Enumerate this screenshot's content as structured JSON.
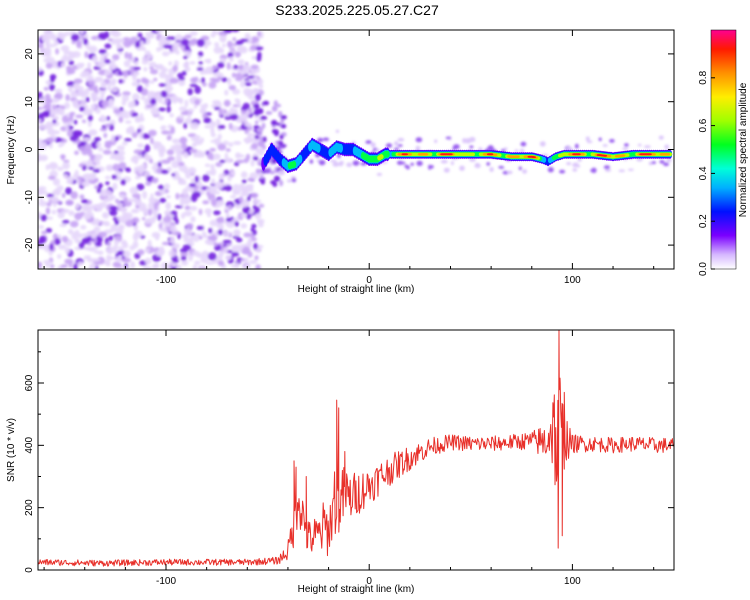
{
  "figure_title": "S233.2025.225.05.27.C27",
  "colors": {
    "signal": "#e8302a",
    "background_speckle": "#7a2be0",
    "frame": "#000000"
  },
  "chart_data": [
    {
      "type": "heatmap",
      "title": "S233.2025.225.05.27.C27",
      "xlabel": "Height of straight line (km)",
      "ylabel": "Frequency (Hz)",
      "xlim": [
        -163,
        150
      ],
      "ylim": [
        -25,
        25
      ],
      "x_ticks": [
        -100,
        0,
        100
      ],
      "x_tick_labels": [
        "-100",
        "0",
        "100"
      ],
      "y_ticks": [
        -20,
        -10,
        0,
        10,
        20
      ],
      "y_tick_labels": [
        "-20",
        "-10",
        "0",
        "10",
        "20"
      ],
      "colorbar": {
        "label": "Normalized spectral amplitude",
        "range": [
          0,
          1
        ],
        "ticks": [
          0,
          0.2,
          0.4,
          0.6,
          0.8
        ],
        "tick_labels": [
          "0.0",
          "0.2",
          "0.4",
          "0.6",
          "0.8"
        ]
      },
      "noise_region_x": [
        -163,
        -53
      ],
      "ridge": {
        "x": [
          -52,
          -48,
          -44,
          -40,
          -36,
          -32,
          -28,
          -24,
          -20,
          -16,
          -12,
          -8,
          -4,
          0,
          4,
          8,
          12,
          20,
          30,
          40,
          50,
          60,
          70,
          80,
          85,
          88,
          92,
          96,
          100,
          110,
          120,
          130,
          140,
          148
        ],
        "frequency": [
          -3,
          0,
          -2,
          -3.5,
          -3,
          -1,
          1,
          0,
          -1,
          0.5,
          0,
          0,
          -1,
          -2,
          -2,
          -1,
          -1,
          -1,
          -1,
          -1,
          -1,
          -1,
          -1.5,
          -1.5,
          -2,
          -2.5,
          -1.5,
          -1,
          -1,
          -1,
          -1.5,
          -1,
          -1,
          -1
        ],
        "amplitude": [
          0.25,
          0.3,
          0.35,
          0.4,
          0.45,
          0.4,
          0.45,
          0.35,
          0.3,
          0.4,
          0.35,
          0.4,
          0.45,
          0.55,
          0.6,
          0.7,
          0.8,
          0.85,
          0.9,
          0.9,
          0.85,
          0.8,
          0.95,
          0.9,
          0.6,
          0.45,
          0.55,
          0.75,
          0.9,
          0.95,
          0.85,
          0.9,
          0.95,
          0.9
        ]
      }
    },
    {
      "type": "line",
      "xlabel": "Height of straight line (km)",
      "ylabel": "SNR (10 * v/v)",
      "xlim": [
        -163,
        150
      ],
      "ylim": [
        0,
        770
      ],
      "x_ticks": [
        -100,
        0,
        100
      ],
      "x_tick_labels": [
        "-100",
        "0",
        "100"
      ],
      "y_ticks": [
        0,
        200,
        400,
        600
      ],
      "y_tick_labels": [
        "0",
        "200",
        "400",
        "600"
      ],
      "series": [
        {
          "name": "SNR",
          "x": [
            -163,
            -130,
            -100,
            -60,
            -45,
            -40,
            -37,
            -35,
            -33,
            -30,
            -25,
            -22,
            -20,
            -17,
            -15,
            -12,
            -10,
            -5,
            0,
            10,
            20,
            30,
            40,
            50,
            60,
            70,
            80,
            86,
            89,
            91,
            92,
            93,
            94,
            95,
            96,
            98,
            100,
            110,
            120,
            130,
            140,
            150
          ],
          "mean": [
            25,
            22,
            25,
            25,
            30,
            60,
            150,
            250,
            180,
            100,
            110,
            140,
            120,
            230,
            200,
            250,
            230,
            250,
            270,
            320,
            360,
            395,
            410,
            405,
            405,
            410,
            415,
            410,
            440,
            460,
            410,
            380,
            460,
            420,
            440,
            410,
            405,
            405,
            400,
            405,
            400,
            400
          ],
          "noise": [
            10,
            10,
            10,
            10,
            12,
            30,
            80,
            100,
            80,
            60,
            70,
            90,
            80,
            120,
            90,
            100,
            80,
            70,
            60,
            50,
            40,
            30,
            25,
            25,
            25,
            25,
            30,
            60,
            100,
            150,
            250,
            200,
            220,
            150,
            120,
            60,
            30,
            25,
            25,
            25,
            25,
            25
          ]
        }
      ],
      "spikes": [
        {
          "x": -37,
          "y": 350
        },
        {
          "x": -36,
          "y": 330
        },
        {
          "x": -31,
          "y": 300
        },
        {
          "x": -16,
          "y": 545
        },
        {
          "x": -15,
          "y": 520
        },
        {
          "x": -12,
          "y": 380
        },
        {
          "x": 93,
          "y": 70
        },
        {
          "x": 93.4,
          "y": 770
        },
        {
          "x": 94,
          "y": 600
        },
        {
          "x": 95,
          "y": 110
        },
        {
          "x": 96,
          "y": 570
        }
      ]
    }
  ]
}
